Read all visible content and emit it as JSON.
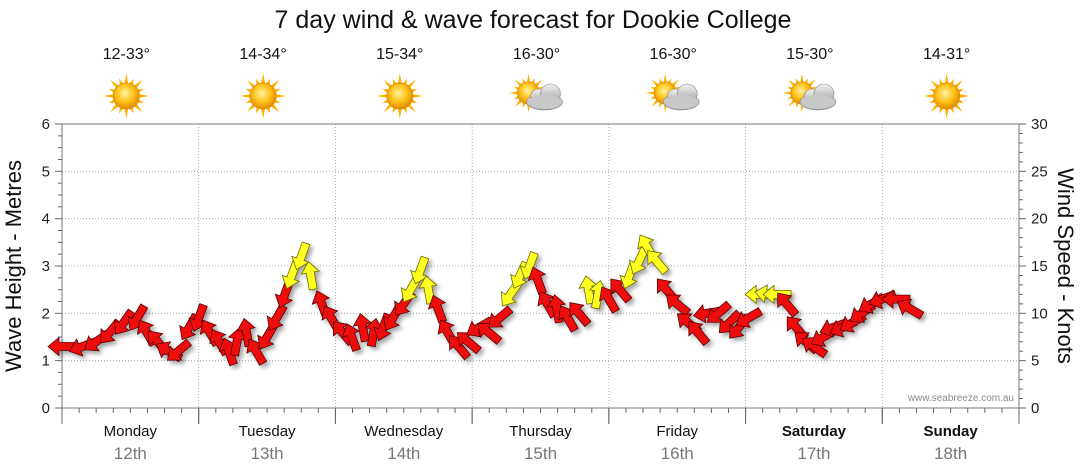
{
  "chart_data": {
    "type": "line",
    "title": "7 day wind & wave forecast for Dookie College",
    "ylabel_left": "Wave Height - Metres",
    "ylabel_right": "Wind Speed - Knots",
    "ylim_left": [
      0,
      6
    ],
    "yticks_left": [
      "0",
      "1",
      "2",
      "3",
      "4",
      "5",
      "6"
    ],
    "ylim_right": [
      0,
      30
    ],
    "yticks_right": [
      "0",
      "5",
      "10",
      "15",
      "20",
      "25",
      "30"
    ],
    "credit": "www.seabreeze.com.au",
    "days": [
      {
        "name": "Monday",
        "date": "12th",
        "temp": "12-33°",
        "icon": "sun",
        "bold": false
      },
      {
        "name": "Tuesday",
        "date": "13th",
        "temp": "14-34°",
        "icon": "sun",
        "bold": false
      },
      {
        "name": "Wednesday",
        "date": "14th",
        "temp": "15-34°",
        "icon": "sun",
        "bold": false
      },
      {
        "name": "Thursday",
        "date": "15th",
        "temp": "16-30°",
        "icon": "sun-cloud",
        "bold": false
      },
      {
        "name": "Friday",
        "date": "16th",
        "temp": "16-30°",
        "icon": "sun-cloud",
        "bold": false
      },
      {
        "name": "Saturday",
        "date": "17th",
        "temp": "15-30°",
        "icon": "sun-cloud",
        "bold": true
      },
      {
        "name": "Sunday",
        "date": "18th",
        "temp": "14-31°",
        "icon": "sun",
        "bold": true
      }
    ],
    "wind": [
      {
        "t": 0.0,
        "kn": 6.5,
        "dir": 270
      },
      {
        "t": 0.15,
        "kn": 6.5,
        "dir": 250
      },
      {
        "t": 0.25,
        "kn": 7.0,
        "dir": 235
      },
      {
        "t": 0.35,
        "kn": 8.0,
        "dir": 220
      },
      {
        "t": 0.45,
        "kn": 9.0,
        "dir": 215
      },
      {
        "t": 0.55,
        "kn": 9.5,
        "dir": 210
      },
      {
        "t": 0.62,
        "kn": 8.0,
        "dir": 330
      },
      {
        "t": 0.7,
        "kn": 7.0,
        "dir": 320
      },
      {
        "t": 0.78,
        "kn": 6.0,
        "dir": 300
      },
      {
        "t": 0.85,
        "kn": 6.0,
        "dir": 230
      },
      {
        "t": 0.93,
        "kn": 8.5,
        "dir": 210
      },
      {
        "t": 1.0,
        "kn": 9.5,
        "dir": 200
      },
      {
        "t": 1.08,
        "kn": 8.0,
        "dir": 330
      },
      {
        "t": 1.15,
        "kn": 7.0,
        "dir": 330
      },
      {
        "t": 1.22,
        "kn": 6.0,
        "dir": 340
      },
      {
        "t": 1.28,
        "kn": 7.0,
        "dir": 10
      },
      {
        "t": 1.35,
        "kn": 8.0,
        "dir": 350
      },
      {
        "t": 1.42,
        "kn": 6.0,
        "dir": 330
      },
      {
        "t": 1.5,
        "kn": 7.5,
        "dir": 210
      },
      {
        "t": 1.57,
        "kn": 9.5,
        "dir": 210
      },
      {
        "t": 1.63,
        "kn": 12.0,
        "dir": 200
      },
      {
        "t": 1.68,
        "kn": 14.0,
        "dir": 200,
        "c": "y"
      },
      {
        "t": 1.75,
        "kn": 16.0,
        "dir": 200,
        "c": "y"
      },
      {
        "t": 1.82,
        "kn": 14.0,
        "dir": 350,
        "c": "y"
      },
      {
        "t": 1.9,
        "kn": 11.0,
        "dir": 340
      },
      {
        "t": 1.97,
        "kn": 9.5,
        "dir": 330
      },
      {
        "t": 2.05,
        "kn": 8.0,
        "dir": 320
      },
      {
        "t": 2.12,
        "kn": 7.5,
        "dir": 340
      },
      {
        "t": 2.2,
        "kn": 8.5,
        "dir": 350
      },
      {
        "t": 2.28,
        "kn": 8.0,
        "dir": 10
      },
      {
        "t": 2.35,
        "kn": 8.5,
        "dir": 200
      },
      {
        "t": 2.42,
        "kn": 9.5,
        "dir": 210
      },
      {
        "t": 2.5,
        "kn": 11.0,
        "dir": 215
      },
      {
        "t": 2.55,
        "kn": 12.5,
        "dir": 210,
        "c": "y"
      },
      {
        "t": 2.62,
        "kn": 14.5,
        "dir": 200,
        "c": "y"
      },
      {
        "t": 2.68,
        "kn": 12.5,
        "dir": 350,
        "c": "y"
      },
      {
        "t": 2.75,
        "kn": 10.5,
        "dir": 340
      },
      {
        "t": 2.82,
        "kn": 8.0,
        "dir": 330
      },
      {
        "t": 2.9,
        "kn": 6.5,
        "dir": 320
      },
      {
        "t": 2.97,
        "kn": 7.0,
        "dir": 310
      },
      {
        "t": 3.05,
        "kn": 8.5,
        "dir": 240
      },
      {
        "t": 3.12,
        "kn": 8.0,
        "dir": 310
      },
      {
        "t": 3.2,
        "kn": 9.5,
        "dir": 230
      },
      {
        "t": 3.28,
        "kn": 12.0,
        "dir": 215,
        "c": "y"
      },
      {
        "t": 3.35,
        "kn": 14.0,
        "dir": 205,
        "c": "y"
      },
      {
        "t": 3.42,
        "kn": 15.0,
        "dir": 200,
        "c": "y"
      },
      {
        "t": 3.48,
        "kn": 13.5,
        "dir": 340
      },
      {
        "t": 3.55,
        "kn": 11.0,
        "dir": 330
      },
      {
        "t": 3.62,
        "kn": 10.5,
        "dir": 350
      },
      {
        "t": 3.7,
        "kn": 9.5,
        "dir": 330
      },
      {
        "t": 3.78,
        "kn": 10.0,
        "dir": 320
      },
      {
        "t": 3.85,
        "kn": 12.5,
        "dir": 350,
        "c": "y"
      },
      {
        "t": 3.92,
        "kn": 12.0,
        "dir": 10,
        "c": "y"
      },
      {
        "t": 4.0,
        "kn": 11.5,
        "dir": 330
      },
      {
        "t": 4.08,
        "kn": 12.5,
        "dir": 320
      },
      {
        "t": 4.15,
        "kn": 14.0,
        "dir": 200,
        "c": "y"
      },
      {
        "t": 4.22,
        "kn": 15.5,
        "dir": 205,
        "c": "y"
      },
      {
        "t": 4.28,
        "kn": 17.0,
        "dir": 330,
        "c": "y"
      },
      {
        "t": 4.35,
        "kn": 15.5,
        "dir": 320,
        "c": "y"
      },
      {
        "t": 4.42,
        "kn": 12.5,
        "dir": 320
      },
      {
        "t": 4.5,
        "kn": 11.0,
        "dir": 310
      },
      {
        "t": 4.58,
        "kn": 9.0,
        "dir": 310
      },
      {
        "t": 4.65,
        "kn": 8.0,
        "dir": 320
      },
      {
        "t": 4.72,
        "kn": 10.0,
        "dir": 260
      },
      {
        "t": 4.8,
        "kn": 10.0,
        "dir": 230
      },
      {
        "t": 4.88,
        "kn": 9.0,
        "dir": 225
      },
      {
        "t": 4.95,
        "kn": 8.5,
        "dir": 220
      },
      {
        "t": 5.02,
        "kn": 9.5,
        "dir": 240
      },
      {
        "t": 5.1,
        "kn": 12.0,
        "dir": 270,
        "c": "y"
      },
      {
        "t": 5.17,
        "kn": 12.0,
        "dir": 280,
        "c": "y"
      },
      {
        "t": 5.23,
        "kn": 12.0,
        "dir": 270,
        "c": "y"
      },
      {
        "t": 5.3,
        "kn": 11.0,
        "dir": 320
      },
      {
        "t": 5.37,
        "kn": 8.5,
        "dir": 320
      },
      {
        "t": 5.44,
        "kn": 7.0,
        "dir": 310
      },
      {
        "t": 5.5,
        "kn": 6.5,
        "dir": 305
      },
      {
        "t": 5.57,
        "kn": 7.5,
        "dir": 240
      },
      {
        "t": 5.64,
        "kn": 8.5,
        "dir": 250
      },
      {
        "t": 5.71,
        "kn": 8.5,
        "dir": 245
      },
      {
        "t": 5.78,
        "kn": 9.0,
        "dir": 240
      },
      {
        "t": 5.85,
        "kn": 10.0,
        "dir": 235
      },
      {
        "t": 5.92,
        "kn": 11.0,
        "dir": 240
      },
      {
        "t": 6.0,
        "kn": 11.5,
        "dir": 250
      },
      {
        "t": 6.1,
        "kn": 11.5,
        "dir": 270
      },
      {
        "t": 6.2,
        "kn": 10.5,
        "dir": 300
      }
    ]
  },
  "colors": {
    "strong": "#ffff22",
    "light": "#ee1111",
    "strong_border": "#6b6b00",
    "light_border": "#5a0000",
    "sun": "#ffb000"
  }
}
